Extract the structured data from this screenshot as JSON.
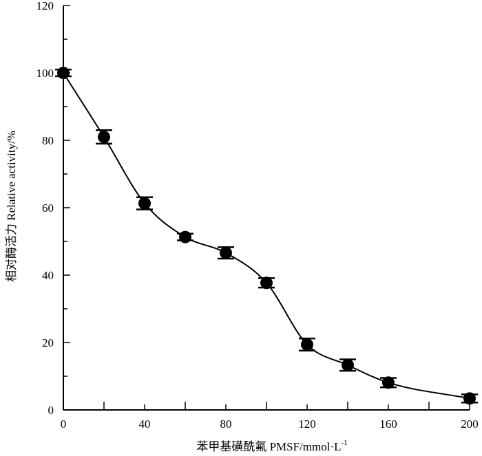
{
  "chart_data": {
    "type": "scatter",
    "title": "",
    "xlabel": "苯甲基磺酰氟 PMSF/mmol·L",
    "xlabel_superscript": "-1",
    "ylabel": "相对酶活力 Relative activity/%",
    "xlim": [
      0,
      200
    ],
    "ylim": [
      0,
      120
    ],
    "x_ticks": [
      "0",
      "40",
      "80",
      "120",
      "160",
      "200"
    ],
    "x_minor_ticks": [
      20,
      60,
      100,
      140,
      180
    ],
    "y_ticks": [
      "0",
      "20",
      "40",
      "60",
      "80",
      "100",
      "120"
    ],
    "y_minor_ticks": [
      10,
      30,
      50,
      70,
      90,
      110
    ],
    "grid": false,
    "legend": "none",
    "smooth_curve": true,
    "series": [
      {
        "x": [
          0,
          20,
          40,
          60,
          80,
          100,
          120,
          140,
          160,
          200
        ],
        "y": [
          100,
          81,
          61.3,
          51.3,
          46.6,
          37.7,
          19.4,
          13.3,
          8.1,
          3.4
        ],
        "error": [
          1,
          2,
          1.8,
          1,
          1.7,
          1.4,
          1.8,
          1.7,
          1.4,
          1.2
        ]
      }
    ]
  }
}
